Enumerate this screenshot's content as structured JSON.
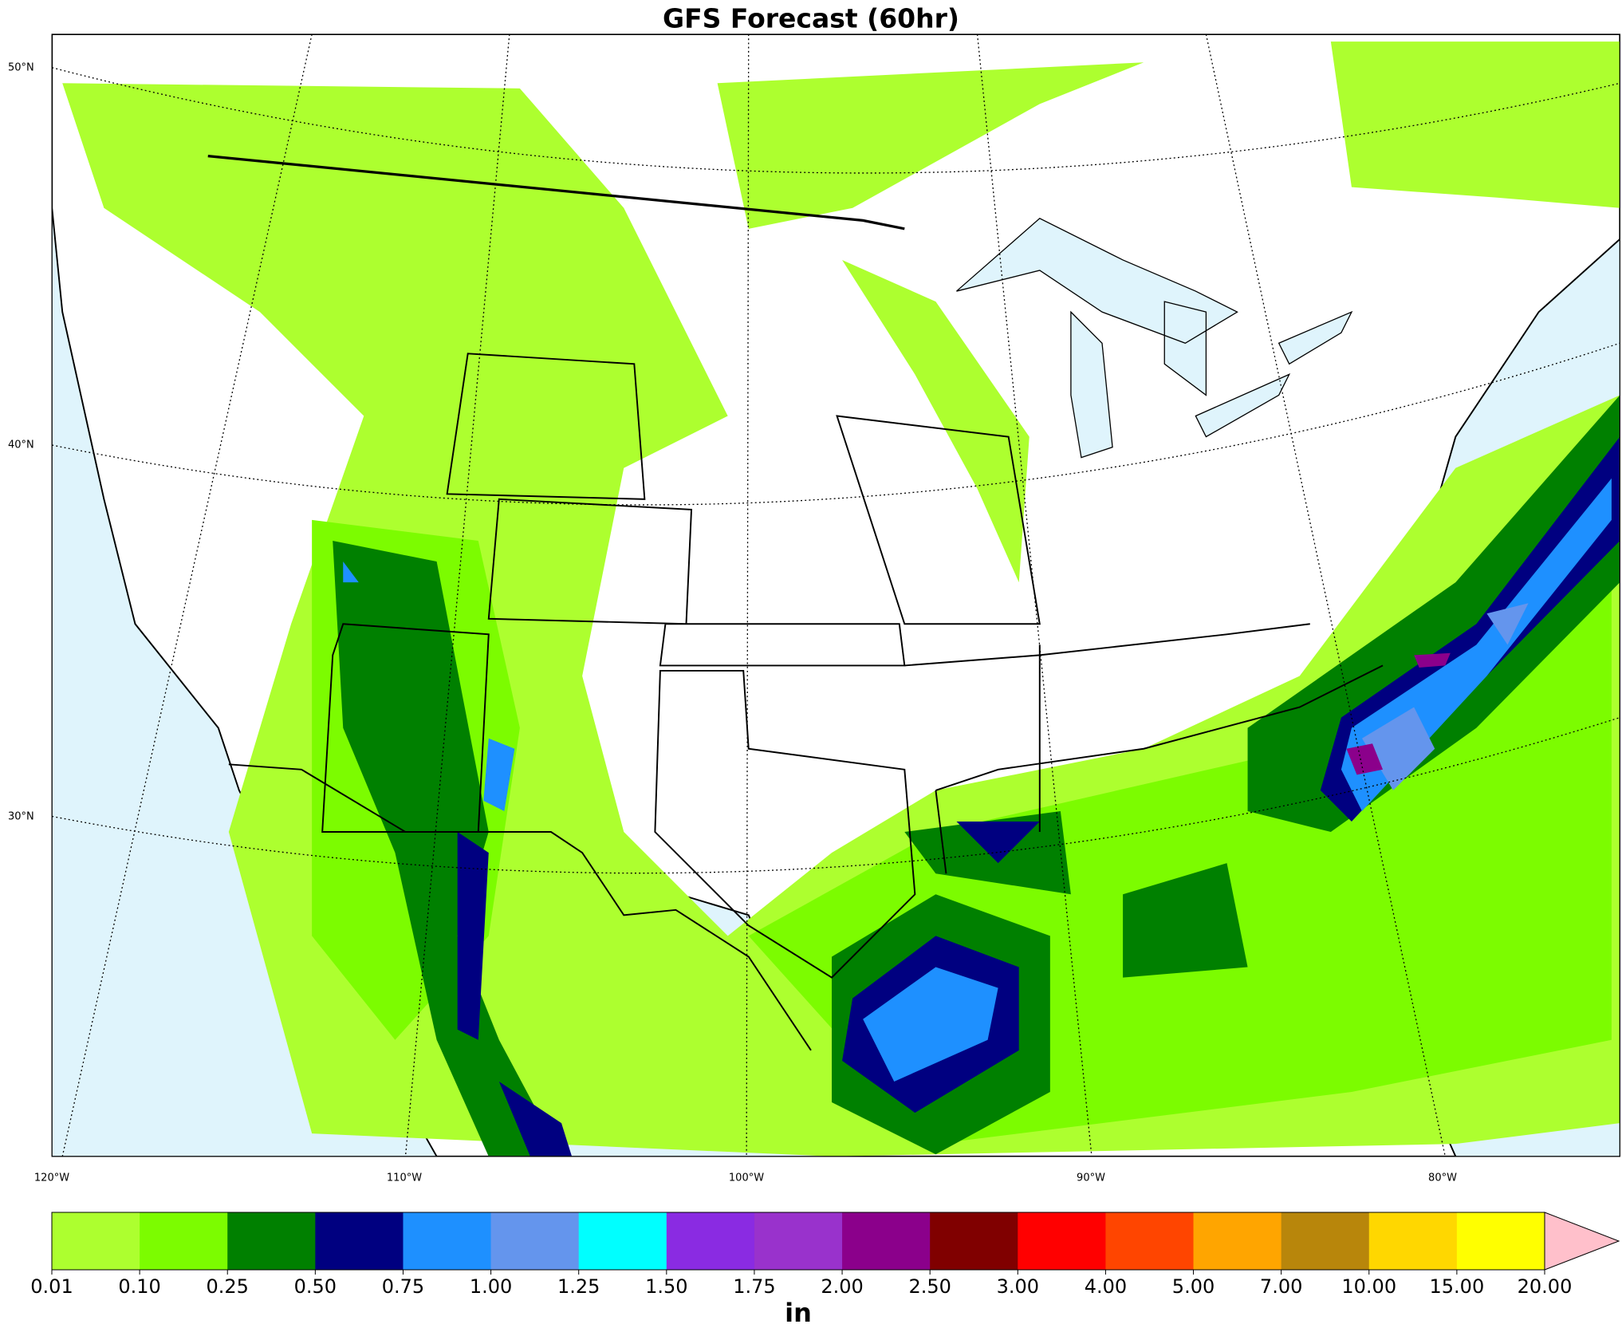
{
  "title": "GFS Forecast (60hr)",
  "map": {
    "lat_labels": [
      "50°N",
      "40°N",
      "30°N"
    ],
    "lon_labels": [
      "120°W",
      "110°W",
      "100°W",
      "90°W",
      "80°W"
    ]
  },
  "colorbar": {
    "label": "in",
    "levels": [
      0.01,
      {
        "value": 0.1,
        "label": "0.10"
      },
      0.25,
      {
        "value": 0.5,
        "label": "0.50"
      },
      0.75,
      {
        "value": 1,
        "label": "1.00"
      },
      1.25,
      {
        "value": 1.5,
        "label": "1.50"
      },
      1.75,
      {
        "value": 2,
        "label": "2.00"
      },
      {
        "value": 2.5,
        "label": "2.50"
      },
      {
        "value": 3,
        "label": "3.00"
      },
      {
        "value": 4,
        "label": "4.00"
      },
      {
        "value": 5,
        "label": "5.00"
      },
      {
        "value": 7,
        "label": "7.00"
      },
      {
        "value": 10,
        "label": "10.00"
      },
      {
        "value": 15,
        "label": "15.00"
      },
      {
        "value": 20,
        "label": "20.00"
      }
    ],
    "colors": [
      "#adff2f",
      "#7cfc00",
      "#008000",
      "#000080",
      "#1e90ff",
      "#6495ed",
      "#00ffff",
      "#8a2be2",
      "#9932cc",
      "#8b008b",
      "#800000",
      "#ff0000",
      "#ff4500",
      "#ffa500",
      "#b8860b",
      "#ffd700",
      "#ffff00"
    ],
    "extend_color": "#ffc0cb"
  }
}
